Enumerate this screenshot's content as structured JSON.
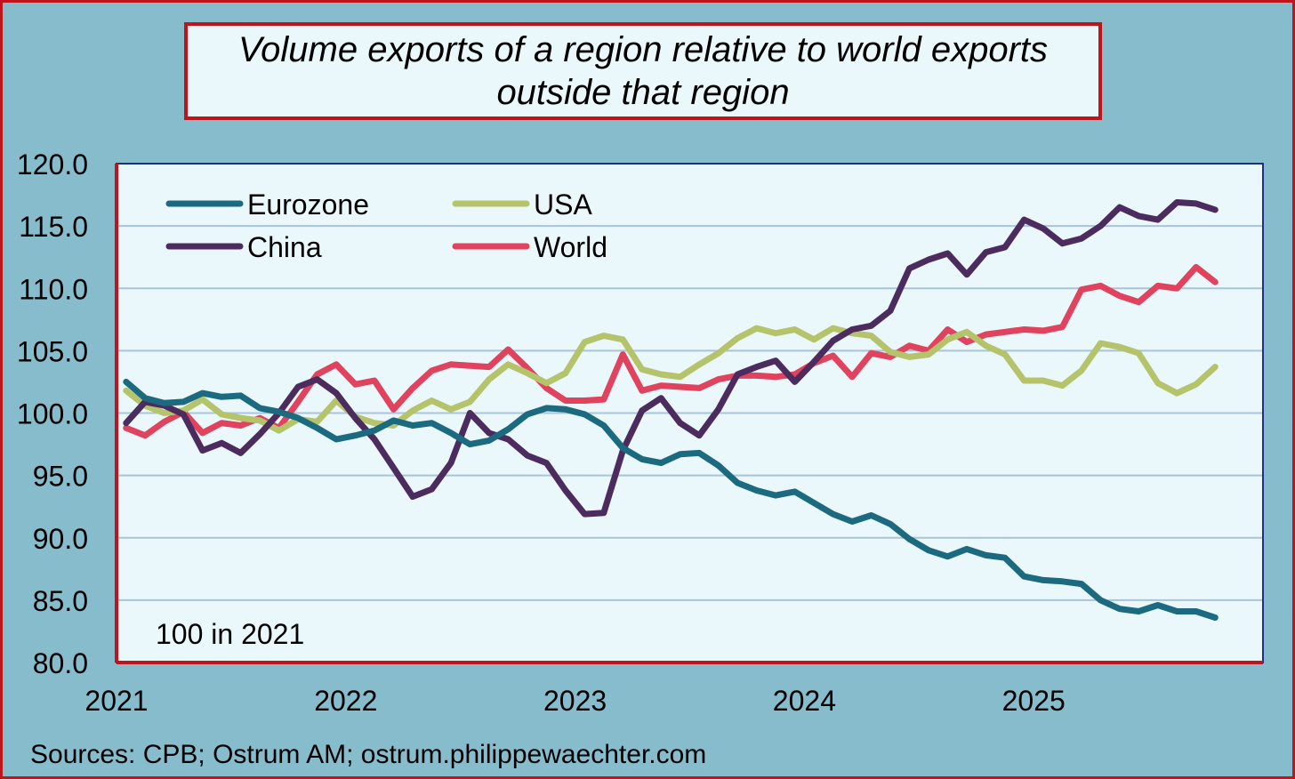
{
  "title_lines": [
    "Volume exports of a region relative to world exports",
    "outside that region"
  ],
  "source": "Sources: CPB; Ostrum AM; ostrum.philippewaechter.com",
  "chart_data": {
    "type": "line",
    "title": "Volume exports of a region relative to world exports outside that region",
    "xlabel": "",
    "ylabel": "",
    "ylim": [
      80,
      120
    ],
    "yticks": [
      80,
      85,
      90,
      95,
      100,
      105,
      110,
      115,
      120
    ],
    "ytick_labels": [
      "80.0",
      "85.0",
      "90.0",
      "95.0",
      "100.0",
      "105.0",
      "110.0",
      "115.0",
      "120.0"
    ],
    "xlim": [
      2021,
      2026
    ],
    "xticks": [
      2021,
      2022,
      2023,
      2024,
      2025
    ],
    "xtick_labels": [
      "2021",
      "2022",
      "2023",
      "2024",
      "2025"
    ],
    "annotation": "100 in 2021",
    "grid": "horizontal",
    "legend_position": "top-left",
    "x_start": 2021.0417,
    "x_step": 0.08333,
    "series": [
      {
        "name": "Eurozone",
        "color": "#1c6a80",
        "values": [
          102.5,
          101.2,
          100.8,
          100.9,
          101.6,
          101.3,
          101.4,
          100.4,
          100.1,
          99.6,
          98.8,
          97.9,
          98.2,
          98.6,
          99.4,
          99.0,
          99.2,
          98.4,
          97.5,
          97.8,
          98.7,
          99.9,
          100.4,
          100.3,
          99.9,
          99.0,
          97.2,
          96.3,
          96.0,
          96.7,
          96.8,
          95.8,
          94.4,
          93.8,
          93.4,
          93.7,
          92.8,
          91.9,
          91.3,
          91.8,
          91.1,
          89.9,
          89.0,
          88.5,
          89.1,
          88.6,
          88.4,
          86.9,
          86.6,
          86.5,
          86.3,
          85.0,
          84.3,
          84.1,
          84.6,
          84.1,
          84.1,
          83.6
        ]
      },
      {
        "name": "USA",
        "color": "#b5c46b",
        "values": [
          101.8,
          100.6,
          100.0,
          100.2,
          101.1,
          99.9,
          99.6,
          99.4,
          98.6,
          99.5,
          99.3,
          101.0,
          99.7,
          99.2,
          99.0,
          100.2,
          101.0,
          100.3,
          100.9,
          102.7,
          103.9,
          103.2,
          102.4,
          103.2,
          105.7,
          106.2,
          105.9,
          103.5,
          103.1,
          102.9,
          103.9,
          104.8,
          106.0,
          106.8,
          106.4,
          106.7,
          105.9,
          106.8,
          106.4,
          106.2,
          104.9,
          104.5,
          104.7,
          105.9,
          106.5,
          105.4,
          104.7,
          102.6,
          102.6,
          102.2,
          103.4,
          105.6,
          105.3,
          104.8,
          102.4,
          101.6,
          102.3,
          103.7
        ]
      },
      {
        "name": "China",
        "color": "#4c2c5e",
        "values": [
          99.2,
          100.9,
          100.6,
          99.9,
          97.0,
          97.6,
          96.8,
          98.3,
          100.0,
          102.1,
          102.7,
          101.6,
          99.6,
          97.9,
          95.6,
          93.3,
          93.9,
          96.0,
          100.0,
          98.4,
          97.9,
          96.6,
          96.0,
          93.8,
          91.9,
          92.0,
          97.0,
          100.2,
          101.2,
          99.2,
          98.2,
          100.3,
          103.1,
          103.7,
          104.2,
          102.5,
          104.1,
          105.8,
          106.7,
          107.0,
          108.2,
          111.6,
          112.3,
          112.8,
          111.1,
          112.9,
          113.3,
          115.5,
          114.8,
          113.6,
          114.0,
          115.0,
          116.5,
          115.8,
          115.5,
          116.9,
          116.8,
          116.3
        ]
      },
      {
        "name": "World",
        "color": "#e0435e",
        "values": [
          98.8,
          98.2,
          99.3,
          100.1,
          98.4,
          99.2,
          99.0,
          99.6,
          98.8,
          100.9,
          103.1,
          103.9,
          102.3,
          102.6,
          100.3,
          102.0,
          103.4,
          103.9,
          103.8,
          103.7,
          105.1,
          103.6,
          102.0,
          101.0,
          101.0,
          101.1,
          104.7,
          101.8,
          102.2,
          102.1,
          102.0,
          102.7,
          103.0,
          103.0,
          102.9,
          103.1,
          104.0,
          104.6,
          102.9,
          104.8,
          104.5,
          105.4,
          105.0,
          106.7,
          105.7,
          106.3,
          106.5,
          106.7,
          106.6,
          106.9,
          109.9,
          110.2,
          109.4,
          108.9,
          110.2,
          110.0,
          111.7,
          110.5
        ]
      }
    ]
  }
}
